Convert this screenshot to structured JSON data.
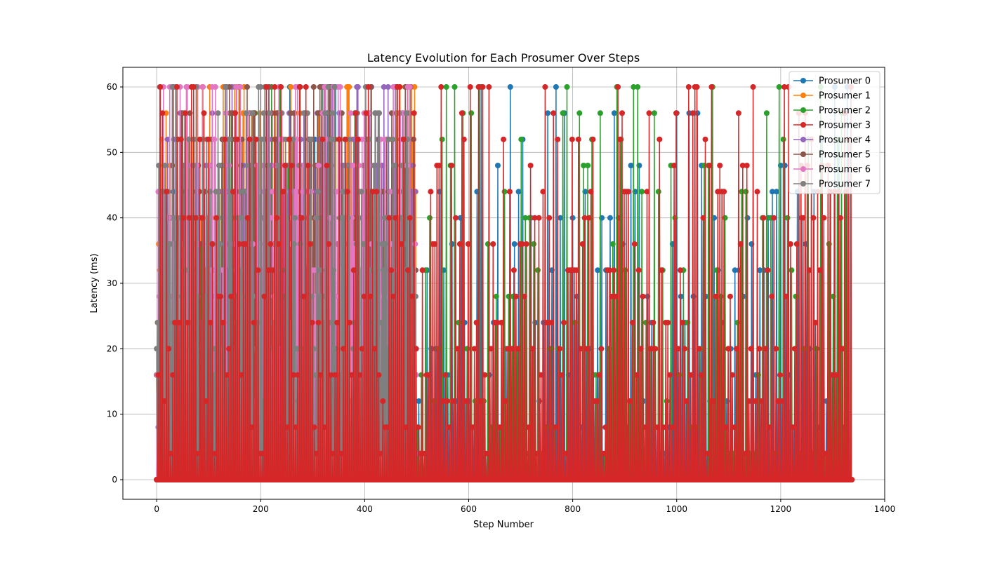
{
  "chart_data": {
    "type": "line",
    "title": "Latency Evolution for Each Prosumer Over Steps",
    "xlabel": "Step Number",
    "ylabel": "Latency (ms)",
    "xlim": [
      -65,
      1400
    ],
    "ylim": [
      -3,
      63
    ],
    "xticks": [
      0,
      200,
      400,
      600,
      800,
      1000,
      1200,
      1400
    ],
    "yticks": [
      0,
      10,
      20,
      30,
      40,
      50,
      60
    ],
    "grid": true,
    "legend_position": "top-right",
    "markers": "circle",
    "levels": [
      4,
      8,
      12,
      16,
      20,
      24,
      28,
      32,
      36,
      40,
      44,
      48,
      52,
      56,
      60
    ],
    "series": [
      {
        "name": "Prosumer 0",
        "color": "#1f77b4",
        "steps": 1330,
        "interval": 8,
        "phase": 0,
        "seed": 11
      },
      {
        "name": "Prosumer 1",
        "color": "#ff7f0e",
        "steps": 500,
        "interval": 2,
        "phase": 0,
        "seed": 23
      },
      {
        "name": "Prosumer 2",
        "color": "#2ca02c",
        "steps": 1330,
        "interval": 8,
        "phase": 3,
        "seed": 37
      },
      {
        "name": "Prosumer 3",
        "color": "#d62728",
        "steps": 1338,
        "interval": 4,
        "phase": 1,
        "seed": 41
      },
      {
        "name": "Prosumer 4",
        "color": "#9467bd",
        "steps": 500,
        "interval": 2,
        "phase": 1,
        "seed": 53
      },
      {
        "name": "Prosumer 5",
        "color": "#8c564b",
        "steps": 500,
        "interval": 2,
        "phase": 0,
        "seed": 67
      },
      {
        "name": "Prosumer 6",
        "color": "#e377c2",
        "steps": 500,
        "interval": 2,
        "phase": 1,
        "seed": 71
      },
      {
        "name": "Prosumer 7",
        "color": "#7f7f7f",
        "steps": 500,
        "interval": 2,
        "phase": 0,
        "seed": 89
      }
    ]
  }
}
